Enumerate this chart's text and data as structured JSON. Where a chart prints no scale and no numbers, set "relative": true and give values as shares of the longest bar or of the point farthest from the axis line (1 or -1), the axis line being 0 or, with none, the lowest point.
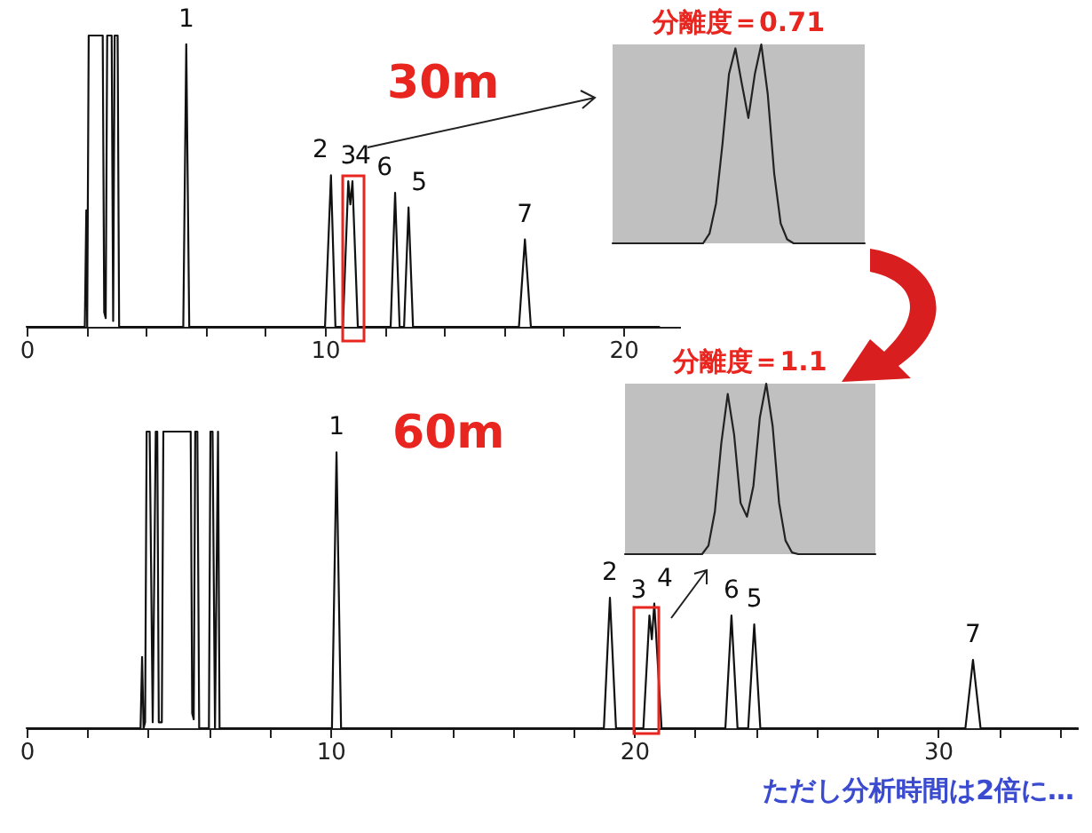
{
  "chart_data": [
    {
      "type": "line",
      "title": "30m",
      "relative": true,
      "xlim": [
        0,
        21.9
      ],
      "xticks": [
        0,
        {
          "value": 2,
          "label": null
        },
        {
          "value": 4,
          "label": null
        },
        {
          "value": 6,
          "label": null
        },
        {
          "value": 8,
          "label": null
        },
        10,
        {
          "value": 12,
          "label": null
        },
        {
          "value": 14,
          "label": null
        },
        {
          "value": 16,
          "label": null
        },
        {
          "value": 18,
          "label": null
        },
        20
      ],
      "x": [
        0,
        1.95,
        2.0,
        2.03,
        2.08,
        2.12,
        2.55,
        2.6,
        2.65,
        2.7,
        2.85,
        2.9,
        2.95,
        3.05,
        3.1,
        5.25,
        5.35,
        5.45,
        10.0,
        10.2,
        10.35,
        10.6,
        10.78,
        10.85,
        10.92,
        11.1,
        12.2,
        12.35,
        12.5,
        12.65,
        12.8,
        12.95,
        16.5,
        16.7,
        16.9,
        21.2
      ],
      "series": [
        {
          "color": "#111111",
          "values": [
            0,
            0,
            0.4,
            0,
            1,
            1,
            1,
            0.05,
            0.03,
            1,
            1,
            0.02,
            1,
            1,
            0,
            0,
            0.97,
            0,
            0,
            0.52,
            0,
            0,
            0.5,
            0.42,
            0.5,
            0,
            0,
            0.46,
            0,
            0,
            0.41,
            0,
            0,
            0.3,
            0,
            0
          ]
        }
      ],
      "annotations": [
        {
          "text": "1",
          "x": 5.35,
          "y": 0.97
        },
        {
          "text": "2",
          "x": 10.2,
          "y": 0.52
        },
        {
          "text": "3",
          "x": 10.78,
          "y": 0.5
        },
        {
          "text": "4",
          "x": 10.92,
          "y": 0.5
        },
        {
          "text": "6",
          "x": 12.35,
          "y": 0.46
        },
        {
          "text": "5",
          "x": 12.8,
          "y": 0.41
        },
        {
          "text": "7",
          "x": 16.7,
          "y": 0.3
        }
      ]
    },
    {
      "type": "line",
      "title": "分離度＝0.71",
      "relative": true,
      "categories": [
        null,
        null,
        null,
        null,
        null,
        null,
        null,
        null,
        null,
        null,
        null,
        null,
        null,
        null,
        null,
        null,
        null,
        null,
        null,
        null,
        null,
        null,
        null,
        null,
        null,
        null,
        null,
        null,
        null,
        null,
        null,
        null,
        null,
        null,
        null,
        null,
        null,
        null,
        null,
        null
      ],
      "series": [
        {
          "color": "#222222",
          "values": [
            0,
            0,
            0,
            0,
            0,
            0,
            0,
            0,
            0,
            0,
            0,
            0,
            0,
            0,
            0,
            0.05,
            0.2,
            0.5,
            0.85,
            0.98,
            0.8,
            0.63,
            0.85,
            1,
            0.75,
            0.35,
            0.1,
            0.02,
            0,
            0,
            0,
            0,
            0,
            0,
            0,
            0,
            0,
            0,
            0,
            0
          ]
        }
      ]
    },
    {
      "type": "line",
      "title": "60m",
      "relative": true,
      "xlim": [
        0,
        34.6
      ],
      "xticks": [
        0,
        {
          "value": 2,
          "label": null
        },
        {
          "value": 4,
          "label": null
        },
        {
          "value": 6,
          "label": null
        },
        {
          "value": 8,
          "label": null
        },
        10,
        {
          "value": 12,
          "label": null
        },
        {
          "value": 14,
          "label": null
        },
        {
          "value": 16,
          "label": null
        },
        {
          "value": 18,
          "label": null
        },
        20,
        {
          "value": 22,
          "label": null
        },
        {
          "value": 24,
          "label": null
        },
        {
          "value": 26,
          "label": null
        },
        {
          "value": 28,
          "label": null
        },
        30,
        {
          "value": 32,
          "label": null
        },
        {
          "value": 34,
          "label": null
        }
      ],
      "x": [
        0,
        3.75,
        3.8,
        3.85,
        3.9,
        3.95,
        4.05,
        4.15,
        4.25,
        4.3,
        4.35,
        4.45,
        4.5,
        5.4,
        5.45,
        5.5,
        5.55,
        5.62,
        5.68,
        6.0,
        6.05,
        6.12,
        6.2,
        6.3,
        6.35,
        10.05,
        10.2,
        10.35,
        19.0,
        19.2,
        19.4,
        20.3,
        20.5,
        20.58,
        20.66,
        20.9,
        23.0,
        23.2,
        23.4,
        23.75,
        23.95,
        24.15,
        30.9,
        31.15,
        31.4,
        34.6
      ],
      "series": [
        {
          "color": "#111111",
          "values": [
            0,
            0,
            0.24,
            0,
            0.02,
            1,
            1,
            0.02,
            1,
            1,
            0.02,
            0.02,
            1,
            1,
            0.05,
            0.03,
            1,
            1,
            0,
            0,
            1,
            1,
            0,
            1,
            0,
            0,
            0.93,
            0,
            0,
            0.44,
            0,
            0,
            0.38,
            0.3,
            0.42,
            0,
            0,
            0.38,
            0,
            0,
            0.35,
            0,
            0,
            0.23,
            0,
            0
          ]
        }
      ],
      "annotations": [
        {
          "text": "1",
          "x": 10.2,
          "y": 0.93
        },
        {
          "text": "2",
          "x": 19.2,
          "y": 0.44
        },
        {
          "text": "3",
          "x": 20.5,
          "y": 0.38
        },
        {
          "text": "4",
          "x": 20.66,
          "y": 0.42
        },
        {
          "text": "6",
          "x": 23.2,
          "y": 0.38
        },
        {
          "text": "5",
          "x": 23.95,
          "y": 0.35
        },
        {
          "text": "7",
          "x": 31.15,
          "y": 0.23
        },
        "ただし分析時間は2倍に…"
      ]
    },
    {
      "type": "line",
      "title": "分離度＝1.1",
      "relative": true,
      "categories": [
        null,
        null,
        null,
        null,
        null,
        null,
        null,
        null,
        null,
        null,
        null,
        null,
        null,
        null,
        null,
        null,
        null,
        null,
        null,
        null,
        null,
        null,
        null,
        null,
        null,
        null,
        null,
        null,
        null,
        null,
        null,
        null,
        null,
        null,
        null,
        null,
        null,
        null,
        null,
        null
      ],
      "series": [
        {
          "color": "#222222",
          "values": [
            0,
            0,
            0,
            0,
            0,
            0,
            0,
            0,
            0,
            0,
            0,
            0,
            0,
            0.05,
            0.25,
            0.65,
            0.94,
            0.7,
            0.3,
            0.22,
            0.4,
            0.8,
            1,
            0.75,
            0.3,
            0.08,
            0.01,
            0,
            0,
            0,
            0,
            0,
            0,
            0,
            0,
            0,
            0,
            0,
            0,
            0
          ]
        }
      ]
    }
  ]
}
